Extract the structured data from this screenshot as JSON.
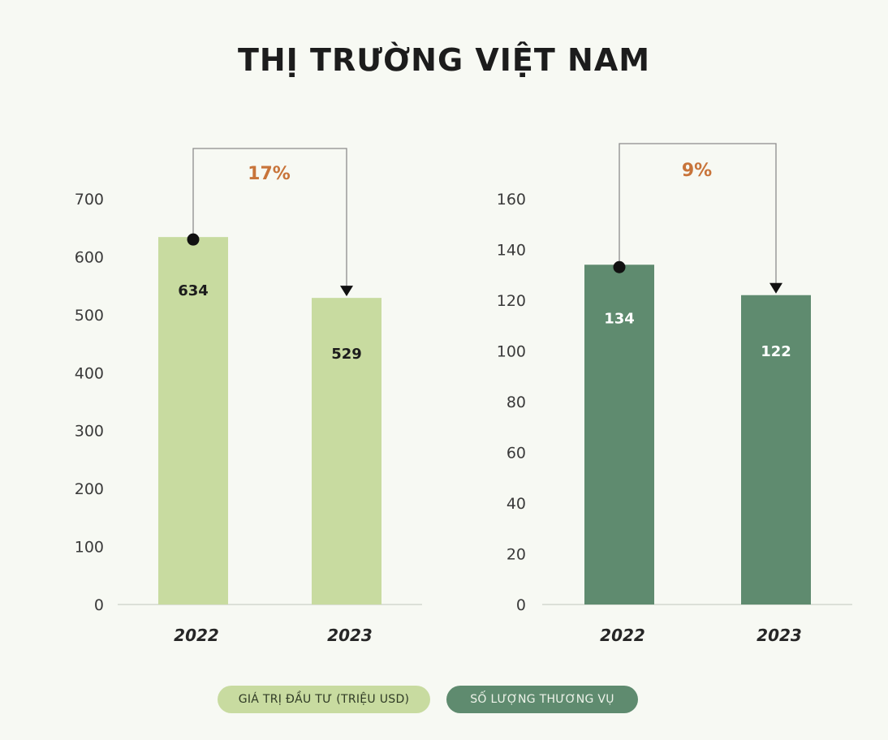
{
  "title": "THỊ TRƯỜNG VIỆT NAM",
  "chart_data": [
    {
      "type": "bar",
      "categories": [
        "2022",
        "2023"
      ],
      "series": [
        {
          "name": "GIÁ TRỊ ĐẦU TƯ (TRIỆU USD)",
          "values": [
            634,
            529
          ]
        }
      ],
      "ylim": [
        0,
        700
      ],
      "yticks": [
        "0",
        "100",
        "200",
        "300",
        "400",
        "500",
        "600",
        "700"
      ],
      "data_labels": [
        "634",
        "529"
      ],
      "change_label": "17%",
      "color": "#c8dba0",
      "label_color": "#1c1c1c"
    },
    {
      "type": "bar",
      "categories": [
        "2022",
        "2023"
      ],
      "series": [
        {
          "name": "SỐ LƯỢNG THƯƠNG VỤ",
          "values": [
            134,
            122
          ]
        }
      ],
      "ylim": [
        0,
        160
      ],
      "yticks": [
        "0",
        "20",
        "40",
        "60",
        "80",
        "100",
        "120",
        "140",
        "160"
      ],
      "data_labels": [
        "134",
        "122"
      ],
      "change_label": "9%",
      "color": "#5f8b6f",
      "label_color": "#ffffff"
    }
  ],
  "legend": {
    "items": [
      {
        "label": "GIÁ TRỊ ĐẦU TƯ (TRIỆU USD)",
        "color": "#c8dba0",
        "text_color": "#2f3a25"
      },
      {
        "label": "SỐ LƯỢNG THƯƠNG VỤ",
        "color": "#5f8b6f",
        "text_color": "#eef3ea"
      }
    ]
  }
}
